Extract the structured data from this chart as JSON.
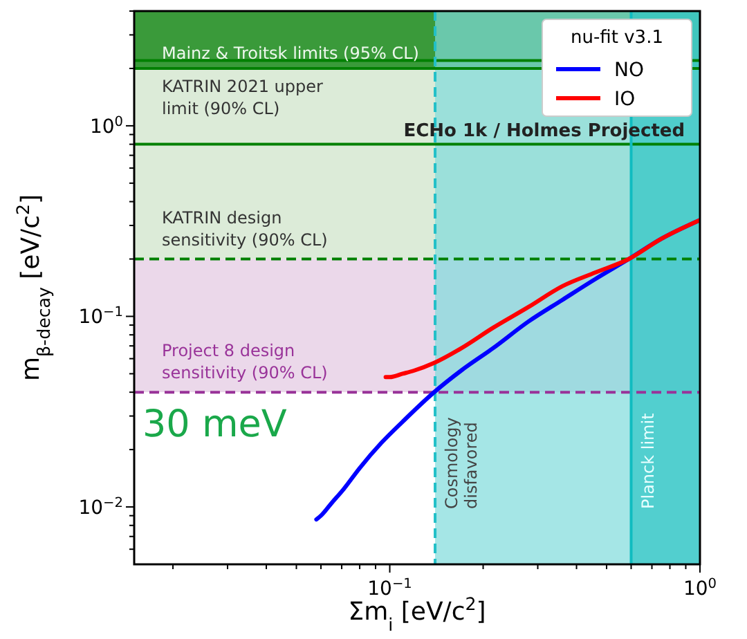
{
  "chart_data": {
    "type": "line",
    "xlabel": "Σm$_{i}$ [eV/c$^{2}$]",
    "ylabel": "m$_{β-decay}$ [eV/c$^{2}$]",
    "legend_title": "nu-fit v3.1",
    "legend": "top right",
    "log": "xy",
    "line_style": "solid",
    "xlim": [
      0.015,
      1
    ],
    "ylim": [
      0.005,
      4
    ],
    "xticks": [
      {
        "value": 0.02,
        "label": null
      },
      {
        "value": 0.03,
        "label": null
      },
      {
        "value": 0.04,
        "label": null
      },
      {
        "value": 0.05,
        "label": null
      },
      {
        "value": 0.06,
        "label": null
      },
      {
        "value": 0.07,
        "label": null
      },
      {
        "value": 0.08,
        "label": null
      },
      {
        "value": 0.09,
        "label": null
      },
      {
        "value": 0.1,
        "label": "10$^{−1}$"
      },
      {
        "value": 0.2,
        "label": null
      },
      {
        "value": 0.3,
        "label": null
      },
      {
        "value": 0.4,
        "label": null
      },
      {
        "value": 0.5,
        "label": null
      },
      {
        "value": 0.6,
        "label": null
      },
      {
        "value": 0.7,
        "label": null
      },
      {
        "value": 0.8,
        "label": null
      },
      {
        "value": 0.9,
        "label": null
      },
      {
        "value": 1,
        "label": "10$^{0}$"
      }
    ],
    "yticks": [
      {
        "value": 0.006,
        "label": null
      },
      {
        "value": 0.007,
        "label": null
      },
      {
        "value": 0.008,
        "label": null
      },
      {
        "value": 0.009,
        "label": null
      },
      {
        "value": 0.01,
        "label": "10$^{−2}$"
      },
      {
        "value": 0.02,
        "label": null
      },
      {
        "value": 0.03,
        "label": null
      },
      {
        "value": 0.04,
        "label": null
      },
      {
        "value": 0.05,
        "label": null
      },
      {
        "value": 0.06,
        "label": null
      },
      {
        "value": 0.07,
        "label": null
      },
      {
        "value": 0.08,
        "label": null
      },
      {
        "value": 0.09,
        "label": null
      },
      {
        "value": 0.1,
        "label": "10$^{−1}$"
      },
      {
        "value": 0.2,
        "label": null
      },
      {
        "value": 0.3,
        "label": null
      },
      {
        "value": 0.4,
        "label": null
      },
      {
        "value": 0.5,
        "label": null
      },
      {
        "value": 0.6,
        "label": null
      },
      {
        "value": 0.7,
        "label": null
      },
      {
        "value": 0.8,
        "label": null
      },
      {
        "value": 0.9,
        "label": null
      },
      {
        "value": 1,
        "label": "10$^{0}$"
      },
      {
        "value": 2,
        "label": null
      },
      {
        "value": 3,
        "label": null
      },
      {
        "value": 4,
        "label": null
      }
    ],
    "series": [
      {
        "name": "NO",
        "color": "#0000ff",
        "x": [
          0.058,
          0.06,
          0.065,
          0.071,
          0.08,
          0.094,
          0.11,
          0.139,
          0.17,
          0.215,
          0.28,
          0.36,
          0.46,
          0.59,
          0.75,
          1
        ],
        "values": [
          0.0086,
          0.009,
          0.0105,
          0.0124,
          0.016,
          0.0217,
          0.028,
          0.04,
          0.052,
          0.068,
          0.094,
          0.122,
          0.157,
          0.2,
          0.255,
          0.32
        ]
      },
      {
        "name": "IO",
        "color": "#ff0000",
        "x": [
          0.097,
          0.1,
          0.11,
          0.12,
          0.139,
          0.17,
          0.215,
          0.28,
          0.36,
          0.46,
          0.59,
          0.75,
          1
        ],
        "values": [
          0.048,
          0.048,
          0.05,
          0.052,
          0.057,
          0.068,
          0.087,
          0.112,
          0.144,
          0.17,
          0.2,
          0.255,
          0.32
        ]
      }
    ],
    "bands": [
      {
        "axis": "y",
        "from": 2,
        "to": 4,
        "color": "#3a9a3a",
        "label": "Mainz & Troitsk limits (95% CL)"
      },
      {
        "axis": "y",
        "from": 0.2,
        "to": 2,
        "color": "#dcebd8"
      },
      {
        "axis": "y",
        "from": 0.04,
        "to": 0.2,
        "color": "#ebd8ea"
      },
      {
        "axis": "x",
        "from": 0.14,
        "to": 1,
        "color": "#7fdcdc",
        "label": "Cosmology disfavored"
      },
      {
        "axis": "x",
        "from": 0.6,
        "to": 1,
        "color": "#2fc4c4",
        "label": "Planck limit"
      }
    ],
    "ref_lines": [
      {
        "axis": "y",
        "value": 2.2,
        "color": "#008000",
        "line_style": "solid"
      },
      {
        "axis": "y",
        "value": 2,
        "color": "#008000",
        "line_style": "solid"
      },
      {
        "axis": "y",
        "value": 0.8,
        "color": "#008000",
        "line_style": "solid",
        "label": "KATRIN 2021 upper limit (90% CL)"
      },
      {
        "axis": "y",
        "value": 0.2,
        "color": "#008000",
        "line_style": "dashed",
        "label": "KATRIN design sensitivity (90% CL)"
      },
      {
        "axis": "y",
        "value": 0.04,
        "color": "#993399",
        "line_style": "dashed",
        "label": "Project 8 design sensitivity (90% CL)"
      },
      {
        "axis": "x",
        "value": 0.14,
        "color": "#22c0c8",
        "line_style": "dashed"
      },
      {
        "axis": "x",
        "value": 0.6,
        "color": "#10bcc0",
        "line_style": "solid"
      }
    ],
    "annotations": [
      "ECHo 1k / Holmes Projected",
      "30 meV"
    ]
  }
}
